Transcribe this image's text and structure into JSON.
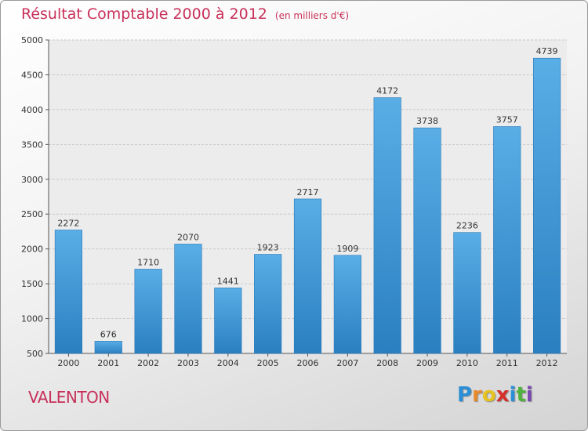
{
  "title": "Résultat Comptable 2000 à 2012",
  "subtitle": "(en milliers d'€)",
  "place": "VALENTON",
  "logo": {
    "letters": [
      "P",
      "r",
      "o",
      "x",
      "i",
      "t",
      "i"
    ],
    "colors": [
      "#2a8fd6",
      "#e8892a",
      "#e5c21e",
      "#d6302a",
      "#2a8fd6",
      "#4fb33e",
      "#7a4ab0"
    ]
  },
  "chart_data": {
    "type": "bar",
    "categories": [
      "2000",
      "2001",
      "2002",
      "2003",
      "2004",
      "2005",
      "2006",
      "2007",
      "2008",
      "2009",
      "2010",
      "2011",
      "2012"
    ],
    "values": [
      2272,
      676,
      1710,
      2070,
      1441,
      1923,
      2717,
      1909,
      4172,
      3738,
      2236,
      3757,
      4739
    ],
    "data_labels": [
      "2272",
      "676",
      "1710",
      "2070",
      "1441",
      "1923",
      "2717",
      "1909",
      "4172",
      "3738",
      "2236",
      "3757",
      "4739"
    ],
    "yticks": [
      "500",
      "1000",
      "1500",
      "2000",
      "2500",
      "3000",
      "3500",
      "4000",
      "4500",
      "5000"
    ],
    "ylim": [
      500,
      5000
    ],
    "grid": true,
    "bar_color": "#3a93d3"
  }
}
